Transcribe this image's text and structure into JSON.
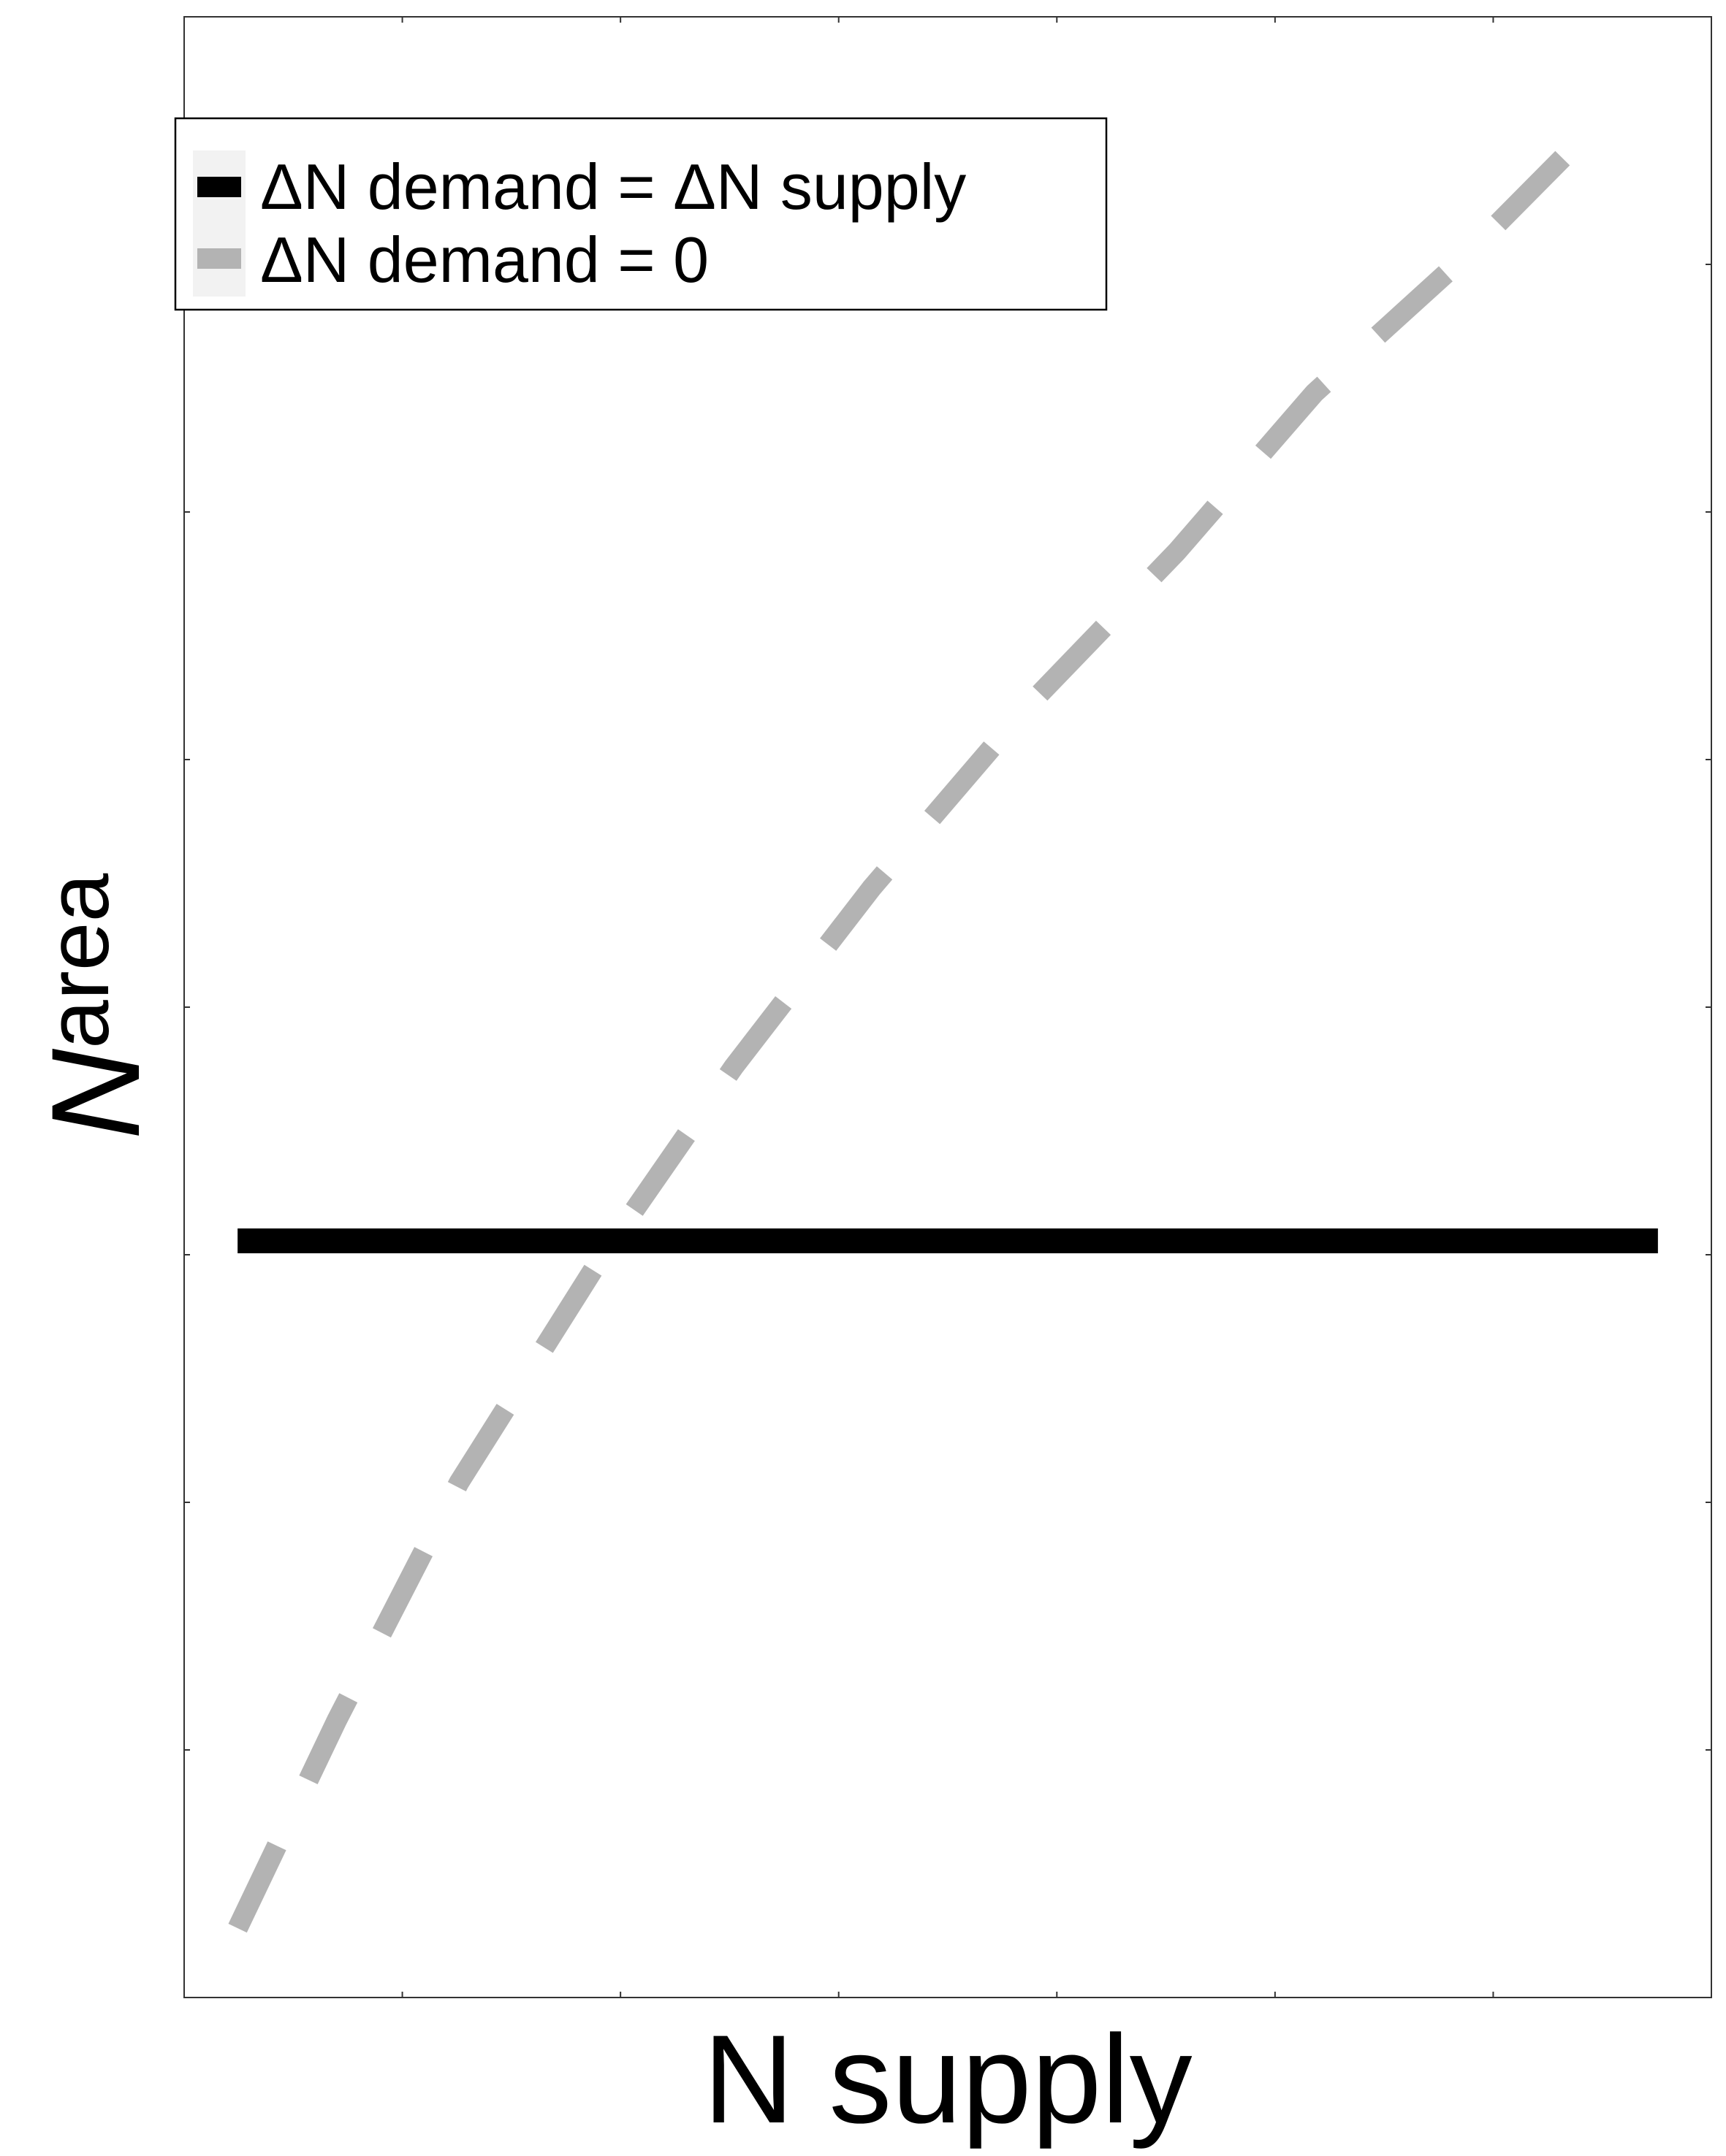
{
  "chart_data": {
    "type": "line",
    "title": "",
    "xlabel": "N supply",
    "ylabel": "N",
    "ylabel_subscript": "area",
    "xlim": [
      0,
      1
    ],
    "ylim": [
      0,
      1
    ],
    "grid": false,
    "tick_labels": false,
    "legend": {
      "placement": "top-left",
      "entries": [
        {
          "label": "ΔN demand = ΔN supply",
          "color": "#000000",
          "style": "solid"
        },
        {
          "label": "ΔN demand = 0",
          "color": "#b3b3b3",
          "style": "dashed"
        }
      ]
    },
    "series": [
      {
        "name": "ΔN demand = ΔN supply",
        "color": "#000000",
        "style": "solid",
        "x": [
          0.035,
          0.965
        ],
        "y": [
          0.382,
          0.382
        ]
      },
      {
        "name": "ΔN demand = 0",
        "color": "#b3b3b3",
        "style": "dashed",
        "x": [
          0.035,
          0.1,
          0.18,
          0.27,
          0.36,
          0.45,
          0.55,
          0.65,
          0.74,
          0.84,
          0.93
        ],
        "y": [
          0.035,
          0.14,
          0.26,
          0.37,
          0.47,
          0.56,
          0.65,
          0.73,
          0.81,
          0.88,
          0.95
        ]
      }
    ]
  }
}
